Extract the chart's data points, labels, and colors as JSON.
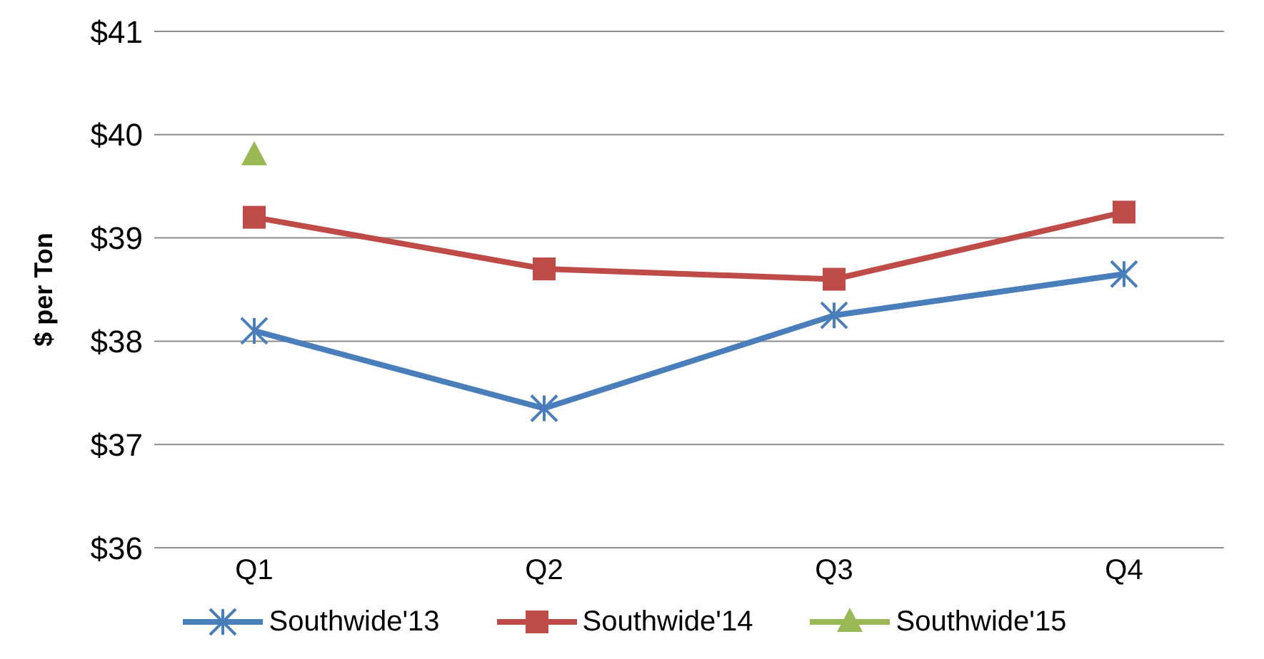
{
  "chart_data": {
    "type": "line",
    "ylabel": "$ per Ton",
    "categories": [
      "Q1",
      "Q2",
      "Q3",
      "Q4"
    ],
    "series": [
      {
        "name": "Southwide'13",
        "color": "#4a7ebb",
        "marker": "cross",
        "values": [
          38.1,
          37.35,
          38.25,
          38.65
        ]
      },
      {
        "name": "Southwide'14",
        "color": "#be4b48",
        "marker": "square",
        "values": [
          39.2,
          38.7,
          38.6,
          39.25
        ]
      },
      {
        "name": "Southwide'15",
        "color": "#98b954",
        "marker": "triangle",
        "values": [
          39.8,
          null,
          null,
          null
        ]
      }
    ],
    "ylim": [
      36,
      41
    ],
    "yticks": [
      {
        "value": 36,
        "label": "$36"
      },
      {
        "value": 37,
        "label": "$37"
      },
      {
        "value": 38,
        "label": "$38"
      },
      {
        "value": 39,
        "label": "$39"
      },
      {
        "value": 40,
        "label": "$40"
      },
      {
        "value": 41,
        "label": "$41"
      }
    ],
    "grid": "y",
    "legend": "bottom"
  }
}
